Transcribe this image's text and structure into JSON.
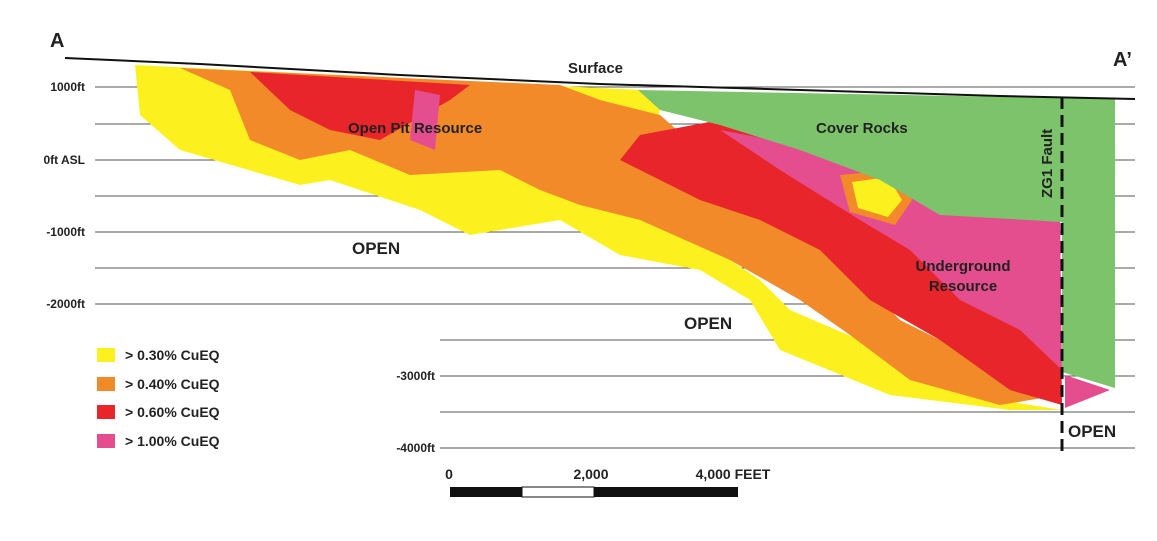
{
  "section": {
    "start_label": "A",
    "end_label": "A’",
    "surface": "Surface",
    "open_pit": "Open Pit Resource",
    "cover_rocks": "Cover Rocks",
    "fault": "ZG1 Fault",
    "underground": "Underground Resource",
    "open_labels": [
      "OPEN",
      "OPEN",
      "OPEN"
    ]
  },
  "elevations": [
    "1000ft",
    "0ft ASL",
    "-1000ft",
    "-2000ft",
    "-3000ft",
    "-4000ft"
  ],
  "legend": [
    "> 0.30% CuEQ",
    "> 0.40% CuEQ",
    "> 0.60% CuEQ",
    "> 1.00% CuEQ"
  ],
  "scale": {
    "zero": "0",
    "mid": "2,000",
    "end": "4,000 FEET"
  }
}
